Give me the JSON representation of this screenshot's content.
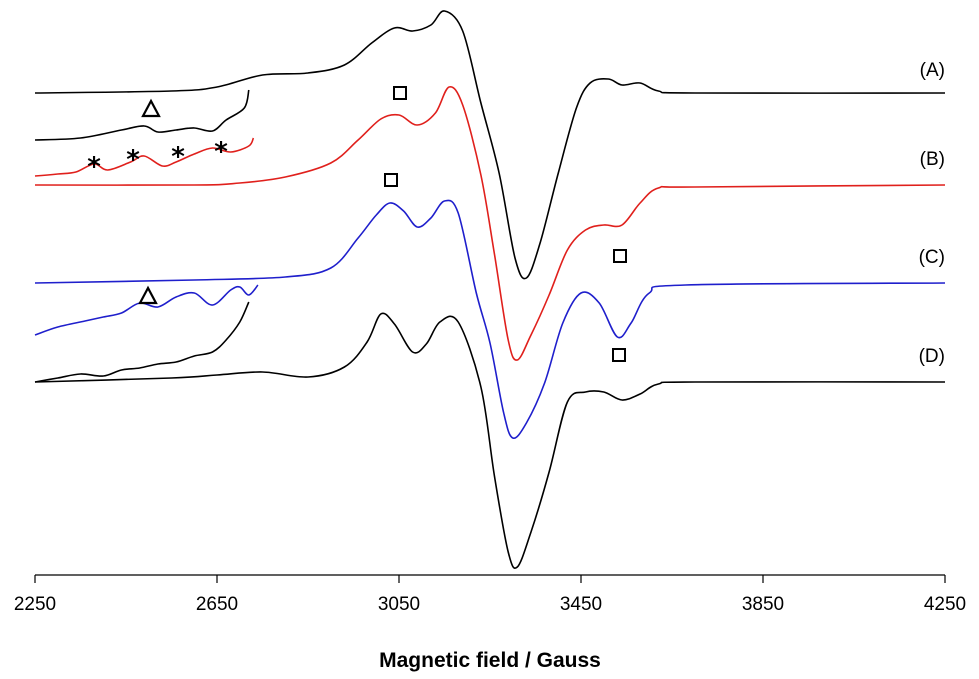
{
  "chart_data": {
    "type": "line",
    "title": "",
    "xlabel": "Magnetic field / Gauss",
    "ylabel": "",
    "xlim": [
      2250,
      4250
    ],
    "xticks": [
      2250,
      2650,
      3050,
      3450,
      3850,
      4250
    ],
    "xtick_labels": [
      "2250",
      "2650",
      "3050",
      "3450",
      "3850",
      "4250"
    ],
    "grid": false,
    "legend": "none",
    "y_units": "arbitrary (derivative EPR signal, traces vertically offset)",
    "series": [
      {
        "name": "(A)",
        "color": "#000000",
        "baseline": 0,
        "points": [
          [
            2250,
            0
          ],
          [
            2550,
            2
          ],
          [
            2650,
            6
          ],
          [
            2750,
            18
          ],
          [
            2850,
            20
          ],
          [
            2930,
            28
          ],
          [
            2990,
            50
          ],
          [
            3040,
            65
          ],
          [
            3080,
            62
          ],
          [
            3120,
            68
          ],
          [
            3150,
            82
          ],
          [
            3190,
            62
          ],
          [
            3230,
            -10
          ],
          [
            3270,
            -80
          ],
          [
            3305,
            -165
          ],
          [
            3330,
            -185
          ],
          [
            3360,
            -150
          ],
          [
            3400,
            -80
          ],
          [
            3440,
            -15
          ],
          [
            3470,
            10
          ],
          [
            3510,
            14
          ],
          [
            3540,
            8
          ],
          [
            3580,
            10
          ],
          [
            3620,
            2
          ],
          [
            3700,
            0
          ],
          [
            4250,
            0
          ]
        ]
      },
      {
        "name": "(B)",
        "color": "#e0201c",
        "baseline": 0,
        "points": [
          [
            2250,
            0
          ],
          [
            2600,
            0
          ],
          [
            2700,
            2
          ],
          [
            2800,
            8
          ],
          [
            2900,
            22
          ],
          [
            2960,
            45
          ],
          [
            3010,
            66
          ],
          [
            3050,
            70
          ],
          [
            3090,
            60
          ],
          [
            3130,
            72
          ],
          [
            3160,
            98
          ],
          [
            3190,
            80
          ],
          [
            3230,
            10
          ],
          [
            3260,
            -70
          ],
          [
            3290,
            -155
          ],
          [
            3310,
            -175
          ],
          [
            3340,
            -150
          ],
          [
            3380,
            -110
          ],
          [
            3420,
            -65
          ],
          [
            3460,
            -45
          ],
          [
            3500,
            -40
          ],
          [
            3540,
            -40
          ],
          [
            3580,
            -18
          ],
          [
            3620,
            -3
          ],
          [
            3700,
            -2
          ],
          [
            4250,
            0
          ]
        ]
      },
      {
        "name": "(C)",
        "color": "#1f1fcc",
        "baseline": 0,
        "points": [
          [
            2250,
            0
          ],
          [
            2600,
            3
          ],
          [
            2800,
            6
          ],
          [
            2900,
            15
          ],
          [
            2960,
            45
          ],
          [
            3000,
            68
          ],
          [
            3030,
            80
          ],
          [
            3060,
            72
          ],
          [
            3090,
            56
          ],
          [
            3120,
            65
          ],
          [
            3150,
            82
          ],
          [
            3180,
            70
          ],
          [
            3220,
            -10
          ],
          [
            3250,
            -60
          ],
          [
            3280,
            -130
          ],
          [
            3300,
            -155
          ],
          [
            3330,
            -140
          ],
          [
            3370,
            -100
          ],
          [
            3410,
            -40
          ],
          [
            3450,
            -10
          ],
          [
            3490,
            -20
          ],
          [
            3530,
            -54
          ],
          [
            3560,
            -40
          ],
          [
            3600,
            -10
          ],
          [
            3680,
            -2
          ],
          [
            4250,
            0
          ]
        ]
      },
      {
        "name": "(D)",
        "color": "#000000",
        "baseline": 0,
        "points": [
          [
            2250,
            0
          ],
          [
            2550,
            4
          ],
          [
            2650,
            7
          ],
          [
            2750,
            10
          ],
          [
            2850,
            5
          ],
          [
            2930,
            15
          ],
          [
            2980,
            40
          ],
          [
            3010,
            68
          ],
          [
            3040,
            58
          ],
          [
            3080,
            30
          ],
          [
            3110,
            38
          ],
          [
            3140,
            60
          ],
          [
            3180,
            60
          ],
          [
            3230,
            -5
          ],
          [
            3260,
            -95
          ],
          [
            3290,
            -170
          ],
          [
            3310,
            -185
          ],
          [
            3340,
            -150
          ],
          [
            3380,
            -90
          ],
          [
            3420,
            -20
          ],
          [
            3460,
            -10
          ],
          [
            3500,
            -10
          ],
          [
            3540,
            -18
          ],
          [
            3580,
            -12
          ],
          [
            3620,
            -2
          ],
          [
            3700,
            0
          ],
          [
            4250,
            0
          ]
        ]
      }
    ],
    "insets": [
      {
        "name": "inset-A",
        "color": "#000000",
        "points": [
          [
            2250,
            0
          ],
          [
            2350,
            2
          ],
          [
            2440,
            10
          ],
          [
            2490,
            14
          ],
          [
            2520,
            8
          ],
          [
            2560,
            10
          ],
          [
            2600,
            12
          ],
          [
            2640,
            9
          ],
          [
            2670,
            20
          ],
          [
            2710,
            32
          ],
          [
            2720,
            50
          ]
        ]
      },
      {
        "name": "inset-B",
        "color": "#e0201c",
        "points": [
          [
            2250,
            0
          ],
          [
            2300,
            2
          ],
          [
            2340,
            4
          ],
          [
            2380,
            12
          ],
          [
            2410,
            6
          ],
          [
            2460,
            14
          ],
          [
            2490,
            20
          ],
          [
            2530,
            10
          ],
          [
            2560,
            14
          ],
          [
            2600,
            22
          ],
          [
            2640,
            28
          ],
          [
            2680,
            24
          ],
          [
            2720,
            30
          ],
          [
            2730,
            38
          ]
        ]
      },
      {
        "name": "inset-C",
        "color": "#1f1fcc",
        "points": [
          [
            2250,
            0
          ],
          [
            2300,
            8
          ],
          [
            2360,
            14
          ],
          [
            2400,
            18
          ],
          [
            2440,
            22
          ],
          [
            2480,
            32
          ],
          [
            2520,
            28
          ],
          [
            2560,
            38
          ],
          [
            2600,
            42
          ],
          [
            2640,
            30
          ],
          [
            2680,
            45
          ],
          [
            2700,
            48
          ],
          [
            2720,
            40
          ],
          [
            2740,
            50
          ]
        ]
      },
      {
        "name": "inset-D",
        "color": "#000000",
        "points": [
          [
            2250,
            0
          ],
          [
            2300,
            4
          ],
          [
            2350,
            8
          ],
          [
            2400,
            6
          ],
          [
            2440,
            12
          ],
          [
            2480,
            14
          ],
          [
            2520,
            18
          ],
          [
            2560,
            20
          ],
          [
            2600,
            26
          ],
          [
            2640,
            30
          ],
          [
            2670,
            42
          ],
          [
            2700,
            60
          ],
          [
            2720,
            80
          ]
        ]
      }
    ],
    "annotations": [
      {
        "symbol": "△",
        "near": "(A) inset"
      },
      {
        "symbol": "□",
        "near": "(B) ~3050 G"
      },
      {
        "symbol": "*",
        "near": "(B) inset, 4 lines"
      },
      {
        "symbol": "□",
        "near": "(C) ~3040 G"
      },
      {
        "symbol": "□",
        "near": "(C) ~3540 G"
      },
      {
        "symbol": "△",
        "near": "(C) inset"
      },
      {
        "symbol": "□",
        "near": "(D) ~3540 G"
      }
    ]
  }
}
